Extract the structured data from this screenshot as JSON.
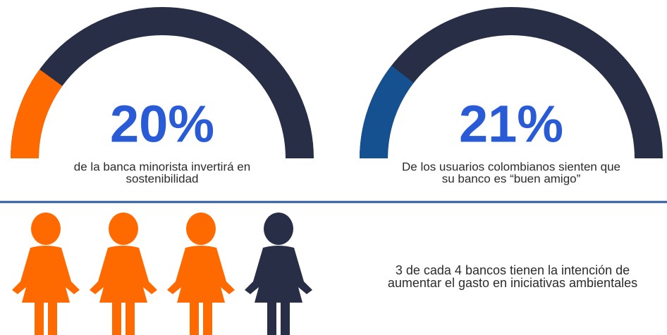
{
  "chart_data": [
    {
      "type": "gauge",
      "values": [
        20
      ],
      "value_labels": [
        "20%"
      ],
      "ylim": [
        0,
        100
      ],
      "color": "#ff6a00",
      "track_color": "#272e45",
      "caption": [
        "de la banca minorista invertirá en",
        "sostenibilidad"
      ]
    },
    {
      "type": "gauge",
      "values": [
        21
      ],
      "value_labels": [
        "21%"
      ],
      "ylim": [
        0,
        100
      ],
      "color": "#155190",
      "track_color": "#272e45",
      "caption": [
        "De los usuarios colombianos sienten que",
        "su banco es “buen amigo”"
      ]
    },
    {
      "type": "pictograph",
      "values": [
        3,
        1
      ],
      "colors": [
        "#ff6a00",
        "#272e45"
      ],
      "caption": [
        "3 de cada 4 bancos tienen la intención de",
        "aumentar el gasto en iniciativas ambientales"
      ]
    }
  ]
}
